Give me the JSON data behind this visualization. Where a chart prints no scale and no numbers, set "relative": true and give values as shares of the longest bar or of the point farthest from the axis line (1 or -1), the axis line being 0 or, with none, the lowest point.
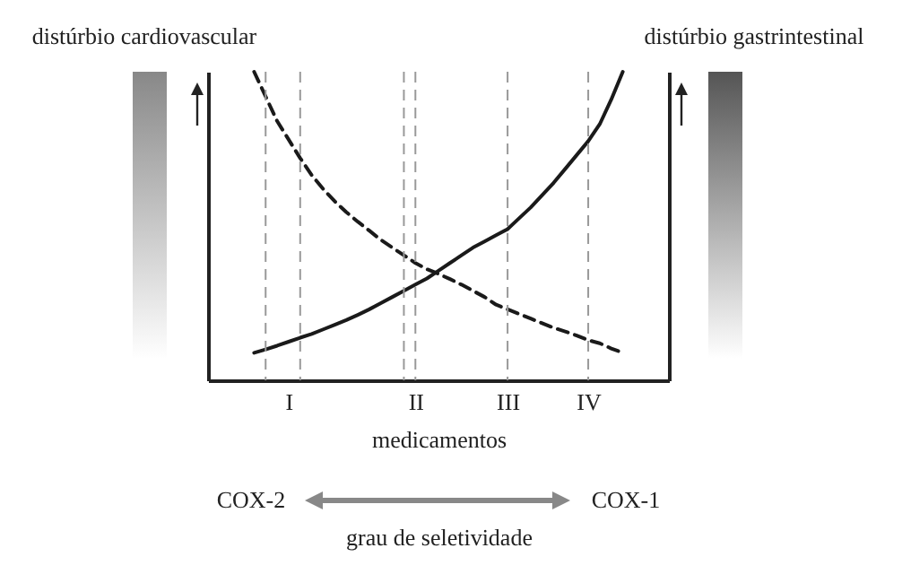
{
  "chart_data": {
    "type": "line",
    "relative": true,
    "ylabel": "distúrbio cardiovascular",
    "y2label": "distúrbio gastrintestinal",
    "xlabel": "medicamentos",
    "categories": [
      null,
      null,
      null,
      null,
      null,
      null,
      null,
      "I",
      null,
      null,
      null,
      null,
      null,
      null,
      null,
      null,
      null,
      null,
      "II",
      null,
      null,
      null,
      null,
      null,
      null,
      null,
      "III",
      null,
      null,
      null,
      null,
      null,
      null,
      "IV",
      null,
      null,
      null,
      null,
      null,
      null,
      null
    ],
    "series": [
      {
        "color": "#1a1a1a",
        "line_style": "dashed",
        "values": [
          null,
          null,
          null,
          null,
          1,
          0.92,
          0.84,
          0.78,
          0.72,
          0.665,
          0.62,
          0.58,
          0.545,
          0.514,
          0.485,
          0.455,
          0.43,
          0.405,
          0.38,
          0.36,
          0.345,
          0.328,
          0.31,
          0.29,
          0.27,
          0.245,
          0.23,
          0.215,
          0.2,
          0.185,
          0.17,
          0.158,
          0.145,
          0.13,
          0.12,
          0.103,
          0.089,
          null,
          null,
          null,
          null
        ]
      },
      {
        "color": "#1a1a1a",
        "line_style": "solid",
        "values": [
          null,
          null,
          null,
          null,
          0.089,
          0.1,
          0.112,
          0.125,
          0.138,
          0.15,
          0.165,
          0.18,
          0.195,
          0.212,
          0.23,
          0.25,
          0.27,
          0.29,
          0.31,
          0.33,
          0.355,
          0.38,
          0.405,
          0.43,
          0.45,
          0.47,
          0.49,
          0.525,
          0.56,
          0.6,
          0.64,
          0.685,
          0.73,
          0.775,
          0.83,
          0.91,
          1,
          null,
          null,
          null,
          null
        ]
      }
    ],
    "annotations": [
      "COX-2",
      "COX-1",
      "grau de seletividade"
    ],
    "grid": "x",
    "marker": "none"
  }
}
